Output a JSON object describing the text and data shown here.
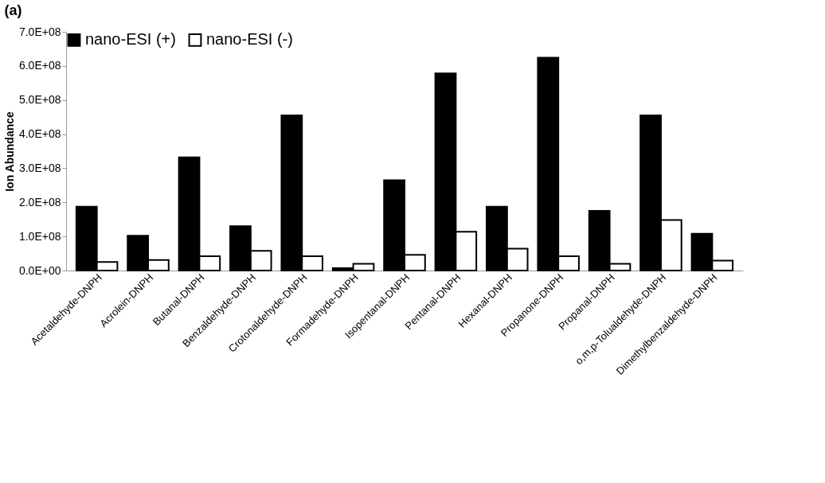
{
  "chart_data": {
    "type": "bar",
    "title": "(a)",
    "ylabel": "Ion Abundance",
    "categories": [
      "Acetaldehyde-DNPH",
      "Acrolein-DNPH",
      "Butanal-DNPH",
      "Benzaldehyde-DNPH",
      "Crotonaldehyde-DNPH",
      "Formadehyde-DNPH",
      "Isopentanal-DNPH",
      "Pentanal-DNPH",
      "Hexanal-DNPH",
      "Propanone-DNPH",
      "Propanal-DNPH",
      "o,m,p-Tolualdehyde-DNPH",
      "Dimethylbenzaldehyde-DNPH"
    ],
    "series": [
      {
        "name": "nano-ESI (+)",
        "color": "#000000",
        "values": [
          187000000,
          102000000,
          332000000,
          130000000,
          455000000,
          7000000,
          265000000,
          578000000,
          187000000,
          624000000,
          175000000,
          455000000,
          108000000
        ]
      },
      {
        "name": "nano-ESI (-)",
        "color": "#ffffff",
        "values": [
          25000000,
          31000000,
          42000000,
          58000000,
          42000000,
          20000000,
          46000000,
          114000000,
          64000000,
          42000000,
          20000000,
          148000000,
          29000000
        ]
      }
    ],
    "ylim": [
      0,
      700000000
    ],
    "yticks": [
      {
        "value": 0,
        "label": "0.0E+00"
      },
      {
        "value": 100000000,
        "label": "1.0E+08"
      },
      {
        "value": 200000000,
        "label": "2.0E+08"
      },
      {
        "value": 300000000,
        "label": "3.0E+08"
      },
      {
        "value": 400000000,
        "label": "4.0E+08"
      },
      {
        "value": 500000000,
        "label": "5.0E+08"
      },
      {
        "value": 600000000,
        "label": "6.0E+08"
      },
      {
        "value": 700000000,
        "label": "7.0E+08"
      }
    ],
    "grid": false,
    "legend": "top left"
  }
}
